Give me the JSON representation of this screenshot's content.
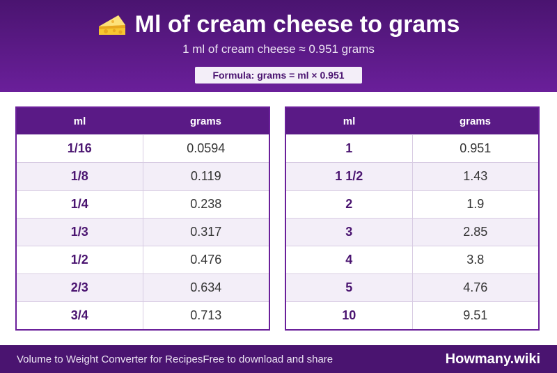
{
  "header": {
    "icon": "cheese-icon",
    "title": "Ml of cream cheese to grams",
    "subtitle": "1 ml of cream cheese ≈ 0.951 grams",
    "formula": "Formula: grams = ml × 0.951"
  },
  "colors": {
    "header_gradient_start": "#4a1470",
    "header_gradient_end": "#6a1f9a",
    "accent": "#5a1a86",
    "row_alt": "#f3eef8"
  },
  "table_left": {
    "columns": [
      "ml",
      "grams"
    ],
    "rows": [
      [
        "1/16",
        "0.0594"
      ],
      [
        "1/8",
        "0.119"
      ],
      [
        "1/4",
        "0.238"
      ],
      [
        "1/3",
        "0.317"
      ],
      [
        "1/2",
        "0.476"
      ],
      [
        "2/3",
        "0.634"
      ],
      [
        "3/4",
        "0.713"
      ]
    ]
  },
  "table_right": {
    "columns": [
      "ml",
      "grams"
    ],
    "rows": [
      [
        "1",
        "0.951"
      ],
      [
        "1 1/2",
        "1.43"
      ],
      [
        "2",
        "1.9"
      ],
      [
        "3",
        "2.85"
      ],
      [
        "4",
        "3.8"
      ],
      [
        "5",
        "4.76"
      ],
      [
        "10",
        "9.51"
      ]
    ]
  },
  "footer": {
    "left_text": "Volume to Weight Converter for RecipesFree to download and share",
    "brand": "Howmany.wiki"
  }
}
